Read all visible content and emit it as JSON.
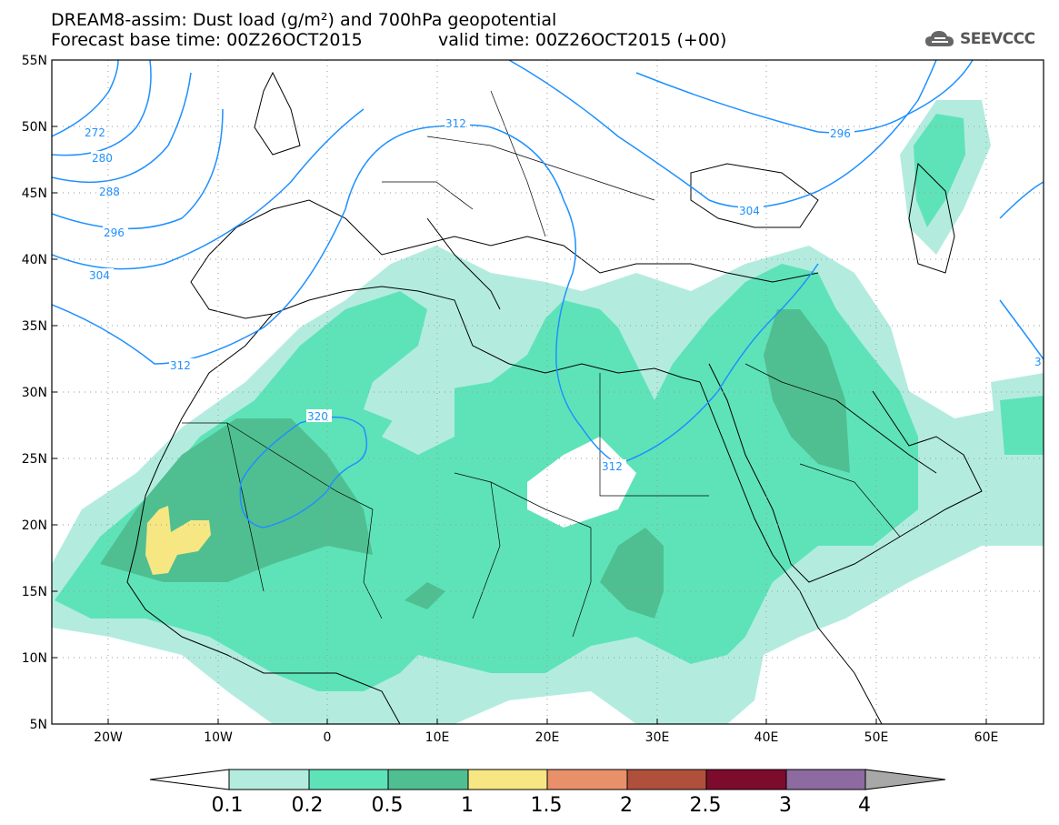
{
  "header": {
    "title_line1": "DREAM8-assim: Dust load (g/m²) and 700hPa geopotential",
    "base_time": "Forecast base time: 00Z26OCT2015",
    "valid_time": "valid time: 00Z26OCT2015 (+00)",
    "logo_text": "SEEVCCC"
  },
  "axes": {
    "lat_labels": [
      "55N",
      "50N",
      "45N",
      "40N",
      "35N",
      "30N",
      "25N",
      "20N",
      "15N",
      "10N",
      "5N"
    ],
    "lon_labels": [
      "20W",
      "10W",
      "0",
      "10E",
      "20E",
      "30E",
      "40E",
      "50E",
      "60E"
    ],
    "lat_range": [
      5,
      55
    ],
    "lon_range": [
      -25,
      65
    ]
  },
  "contour_labels": [
    "272",
    "280",
    "288",
    "296",
    "304",
    "312",
    "320",
    "312",
    "304",
    "296",
    "312",
    "3"
  ],
  "colorbar": {
    "labels": [
      "0.1",
      "0.2",
      "0.5",
      "1",
      "1.5",
      "2",
      "2.5",
      "3",
      "4"
    ],
    "colors": [
      "#ffffff",
      "#b3ecdf",
      "#5ee3b8",
      "#4fbf91",
      "#f7e783",
      "#e8906a",
      "#b0503c",
      "#7c0b2c",
      "#8d6aa0",
      "#a8a8a8"
    ]
  }
}
